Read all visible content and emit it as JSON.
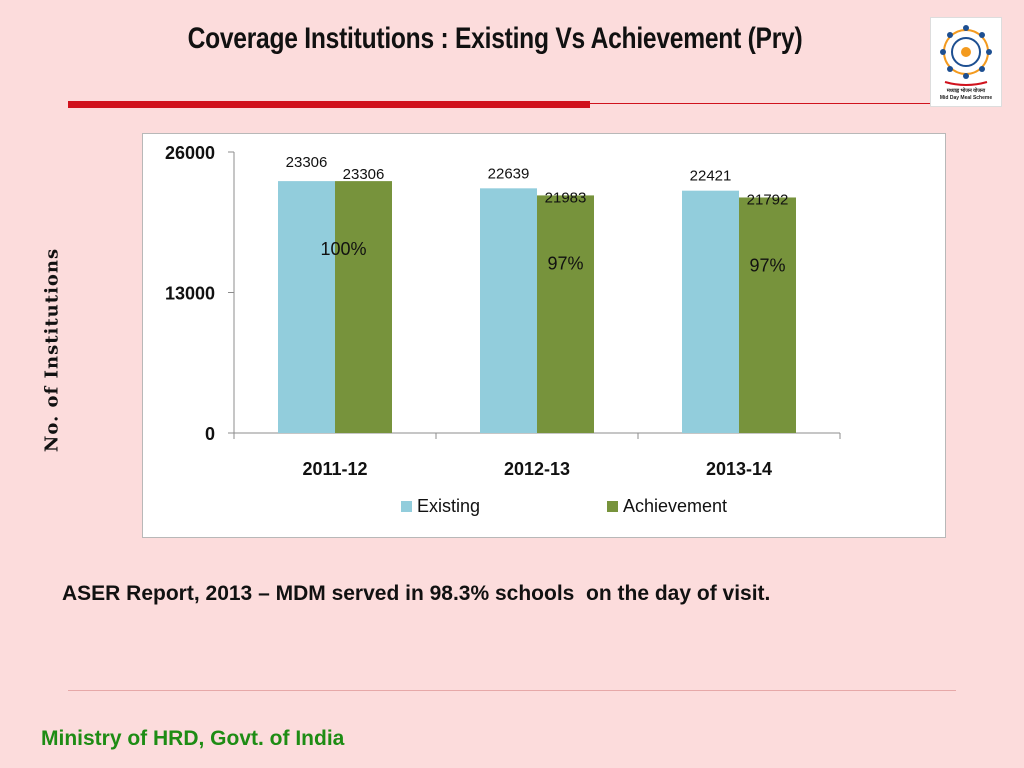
{
  "slide": {
    "title": "Coverage Institutions : Existing Vs Achievement (Pry)",
    "side_label": "No. of Institutions",
    "footnote": "ASER Report, 2013 – MDM served in 98.3% schools  on the day of visit.",
    "footer": "Ministry of HRD, Govt. of India",
    "logo_caption_hindi": "मध्याह्न भोजन योजना",
    "logo_caption": "Mid Day Meal Scheme",
    "colors": {
      "background": "#fcdcdc",
      "rule": "#d0121d",
      "footer_text": "#1e8c14"
    }
  },
  "chart_data": {
    "type": "bar",
    "categories": [
      "2011-12",
      "2012-13",
      "2013-14"
    ],
    "series": [
      {
        "name": "Existing",
        "values": [
          23306,
          22639,
          22421
        ],
        "color": "#92cddc"
      },
      {
        "name": "Achievement",
        "values": [
          23306,
          21983,
          21792
        ],
        "color": "#77933c"
      }
    ],
    "percent_labels": [
      "100%",
      "97%",
      "97%"
    ],
    "yticks": [
      0,
      13000,
      26000
    ],
    "ylim": [
      0,
      26000
    ],
    "grid": false,
    "legend_position": "bottom"
  }
}
